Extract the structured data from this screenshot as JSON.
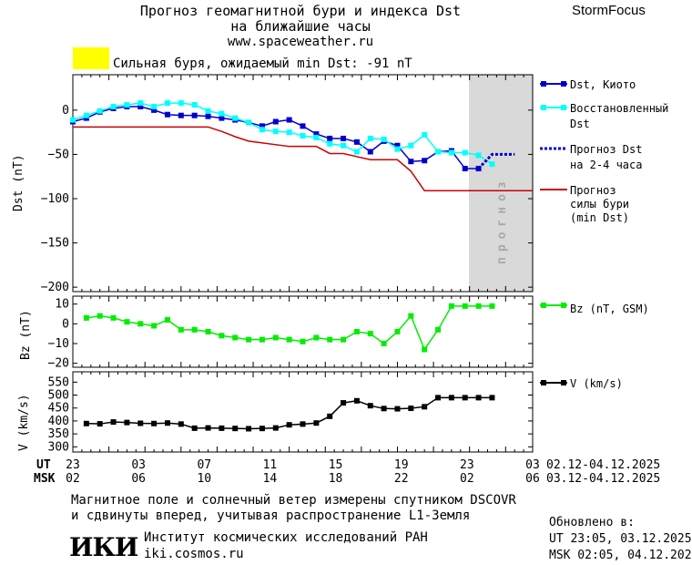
{
  "header": {
    "title_line1": "Прогноз геомагнитной бури и индекса Dst",
    "title_line2": "на ближайшие часы",
    "url": "www.spaceweather.ru",
    "brand": "StormFocus",
    "alert_text": "Сильная буря, ожидаемый min Dst: -91 nT",
    "alert_color": "#ffff00"
  },
  "chart_data": [
    {
      "type": "line",
      "ylabel": "Dst (nT)",
      "ylim": [
        -205,
        40
      ],
      "yticks": [
        0,
        -50,
        -100,
        -150,
        -200
      ],
      "ytick_labels": [
        "0",
        "−50",
        "−100",
        "−150",
        "−200"
      ],
      "x_range_hours": [
        0,
        51
      ],
      "forecast_band_label": "прогноз",
      "forecast_band_start": 45.5,
      "series": [
        {
          "name": "Dst, Киото",
          "color": "#0000cc",
          "x": [
            0,
            1.5,
            3,
            4.5,
            6,
            7.5,
            9,
            10.5,
            12,
            13.5,
            15,
            16.5,
            18,
            19.5,
            21,
            22.5,
            24,
            25.5,
            27,
            28.5,
            30,
            31.5,
            33,
            34.5,
            36,
            37.5,
            39,
            40.5,
            42,
            43.5,
            45
          ],
          "y": [
            -13,
            -9,
            -2,
            2,
            4,
            4,
            0,
            -5,
            -6,
            -6,
            -7,
            -9,
            -11,
            -14,
            -18,
            -13,
            -11,
            -18,
            -27,
            -32,
            -32,
            -36,
            -47,
            -35,
            -40,
            -58,
            -57,
            -47,
            -46,
            -66,
            -66
          ]
        },
        {
          "name": "Восстановленный Dst",
          "color": "#00ffff",
          "x": [
            0,
            1.5,
            3,
            4.5,
            6,
            7.5,
            9,
            10.5,
            12,
            13.5,
            15,
            16.5,
            18,
            19.5,
            21,
            22.5,
            24,
            25.5,
            27,
            28.5,
            30,
            31.5,
            33,
            34.5,
            36,
            37.5,
            39,
            40.5,
            42,
            43.5,
            45,
            46.5
          ],
          "y": [
            -11,
            -6,
            -1,
            4,
            6,
            8,
            4,
            8,
            8,
            6,
            -1,
            -4,
            -9,
            -14,
            -22,
            -24,
            -25,
            -29,
            -31,
            -38,
            -40,
            -47,
            -32,
            -33,
            -44,
            -40,
            -28,
            -47,
            -48,
            -48,
            -51,
            -61
          ]
        },
        {
          "name": "Прогноз Dst на 2-4 часа",
          "color": "#0000cc",
          "x": [
            45,
            46.5,
            48,
            49
          ],
          "y": [
            -66,
            -50,
            -50,
            -50
          ]
        },
        {
          "name": "Прогноз силы бури (min Dst)",
          "color": "#cc0000",
          "x": [
            0,
            15,
            16.5,
            18,
            19.5,
            24,
            25.5,
            27,
            28.5,
            30,
            33,
            34.5,
            36,
            37.5,
            39,
            51
          ],
          "y": [
            -19,
            -19,
            -24,
            -30,
            -35,
            -41,
            -41,
            -41,
            -49,
            -49,
            -56,
            -56,
            -56,
            -69,
            -91,
            -91
          ]
        }
      ]
    },
    {
      "type": "line",
      "ylabel": "Bz (nT)",
      "ylim": [
        -22,
        14
      ],
      "yticks": [
        10,
        0,
        -10,
        -20
      ],
      "ytick_labels": [
        "10",
        "0",
        "−10",
        "−20"
      ],
      "series": [
        {
          "name": "Bz (nT, GSM)",
          "color": "#00ee00",
          "x": [
            1.5,
            3,
            4.5,
            6,
            7.5,
            9,
            10.5,
            12,
            13.5,
            15,
            16.5,
            18,
            19.5,
            21,
            22.5,
            24,
            25.5,
            27,
            28.5,
            30,
            31.5,
            33,
            34.5,
            36,
            37.5,
            39,
            40.5,
            42,
            43.5,
            45,
            46.5
          ],
          "y": [
            3,
            4,
            3,
            1,
            0,
            -1,
            2,
            -3,
            -3,
            -4,
            -6,
            -7,
            -8,
            -8,
            -7,
            -8,
            -9,
            -7,
            -8,
            -8,
            -4,
            -5,
            -10,
            -4,
            4,
            -13,
            -3,
            9,
            9,
            9,
            9
          ]
        }
      ]
    },
    {
      "type": "line",
      "ylabel": "V (km/s)",
      "ylim": [
        280,
        590
      ],
      "yticks": [
        550,
        500,
        450,
        400,
        350,
        300
      ],
      "ytick_labels": [
        "550",
        "500",
        "450",
        "400",
        "350",
        "300"
      ],
      "series": [
        {
          "name": "V (km/s)",
          "color": "#000000",
          "x": [
            1.5,
            3,
            4.5,
            6,
            7.5,
            9,
            10.5,
            12,
            13.5,
            15,
            16.5,
            18,
            19.5,
            21,
            22.5,
            24,
            25.5,
            27,
            28.5,
            30,
            31.5,
            33,
            34.5,
            36,
            37.5,
            39,
            40.5,
            42,
            43.5,
            45,
            46.5
          ],
          "y": [
            390,
            389,
            396,
            394,
            391,
            390,
            392,
            388,
            372,
            373,
            372,
            371,
            370,
            371,
            373,
            385,
            388,
            392,
            418,
            470,
            478,
            459,
            448,
            447,
            449,
            455,
            490,
            490,
            490,
            490,
            490
          ]
        }
      ]
    }
  ],
  "time_axis": {
    "ut_label": "UT",
    "msk_label": "MSK",
    "ut_ticks": [
      "23",
      "03",
      "07",
      "11",
      "15",
      "19",
      "23",
      "03"
    ],
    "msk_ticks": [
      "02",
      "06",
      "10",
      "14",
      "18",
      "22",
      "02",
      "06"
    ],
    "ut_date_range": "02.12-04.12.2025",
    "msk_date_range": "03.12-04.12.2025"
  },
  "footer": {
    "note_line1": "Магнитное поле и солнечный ветер измерены спутником DSCOVR",
    "note_line2": "и сдвинуты вперед, учитывая распространение L1-Земля",
    "logo_text": "ИКИ",
    "institute": "Институт космических исследований РАН",
    "site": "iki.cosmos.ru",
    "updated_label": "Обновлено в:",
    "updated_ut": "UT  23:05, 03.12.2025",
    "updated_msk": "MSK 02:05, 04.12.2025"
  }
}
